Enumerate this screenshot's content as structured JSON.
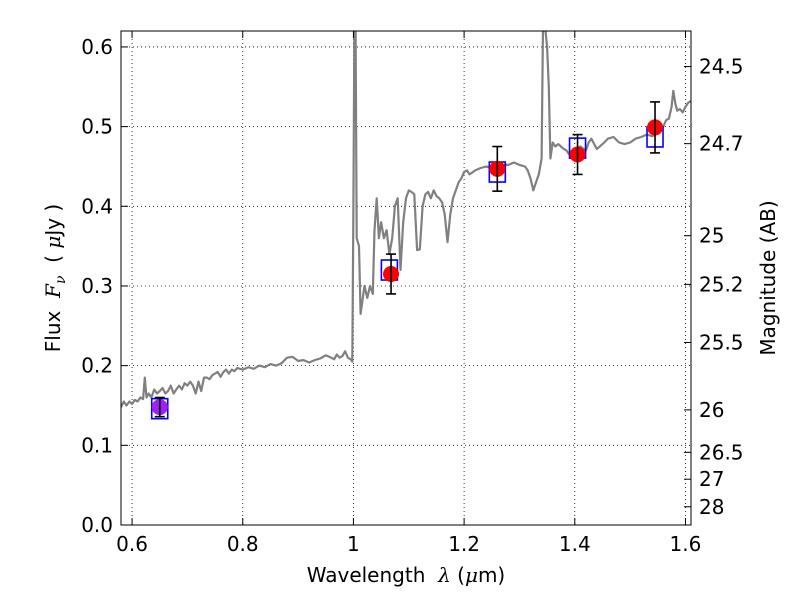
{
  "chart_data": {
    "type": "line",
    "xlabel": {
      "prefix": "Wavelength  ",
      "symbol": "λ",
      "unit_open": " (",
      "unit_mu": "μ",
      "unit_close": "m)"
    },
    "ylabel": {
      "prefix": "Flux  ",
      "symbol": "F",
      "subscript": "ν",
      "unit_open": "  ( ",
      "unit_mu": "μ",
      "unit_close": "Jy )"
    },
    "y2label": "Magnitude (AB)",
    "xlim": [
      0.58,
      1.61
    ],
    "ylim": [
      0.0,
      0.62
    ],
    "x_ticks": [
      {
        "value": 0.6,
        "label": "0.6"
      },
      {
        "value": 0.8,
        "label": "0.8"
      },
      {
        "value": 1.0,
        "label": "1"
      },
      {
        "value": 1.2,
        "label": "1.2"
      },
      {
        "value": 1.4,
        "label": "1.4"
      },
      {
        "value": 1.6,
        "label": "1.6"
      }
    ],
    "y_ticks": [
      {
        "value": 0.0,
        "label": "0.0"
      },
      {
        "value": 0.1,
        "label": "0.1"
      },
      {
        "value": 0.2,
        "label": "0.2"
      },
      {
        "value": 0.3,
        "label": "0.3"
      },
      {
        "value": 0.4,
        "label": "0.4"
      },
      {
        "value": 0.5,
        "label": "0.5"
      },
      {
        "value": 0.6,
        "label": "0.6"
      }
    ],
    "y2_ticks": [
      {
        "label": "24.5",
        "flux": 0.5754
      },
      {
        "label": "24.7",
        "flux": 0.4786
      },
      {
        "label": "25",
        "flux": 0.3631
      },
      {
        "label": "25.2",
        "flux": 0.302
      },
      {
        "label": "25.5",
        "flux": 0.2291
      },
      {
        "label": "26",
        "flux": 0.1445
      },
      {
        "label": "26.5",
        "flux": 0.0912
      },
      {
        "label": "27",
        "flux": 0.0575
      },
      {
        "label": "28",
        "flux": 0.0229
      }
    ],
    "grid": true,
    "series": [
      {
        "kind": "line",
        "color": "#808080",
        "points": [
          [
            0.58,
            0.148
          ],
          [
            0.585,
            0.155
          ],
          [
            0.59,
            0.15
          ],
          [
            0.595,
            0.155
          ],
          [
            0.6,
            0.152
          ],
          [
            0.605,
            0.157
          ],
          [
            0.61,
            0.155
          ],
          [
            0.615,
            0.16
          ],
          [
            0.62,
            0.158
          ],
          [
            0.623,
            0.185
          ],
          [
            0.626,
            0.16
          ],
          [
            0.63,
            0.165
          ],
          [
            0.635,
            0.16
          ],
          [
            0.64,
            0.17
          ],
          [
            0.645,
            0.165
          ],
          [
            0.65,
            0.168
          ],
          [
            0.655,
            0.172
          ],
          [
            0.66,
            0.165
          ],
          [
            0.665,
            0.168
          ],
          [
            0.67,
            0.175
          ],
          [
            0.675,
            0.165
          ],
          [
            0.68,
            0.17
          ],
          [
            0.685,
            0.175
          ],
          [
            0.69,
            0.17
          ],
          [
            0.695,
            0.178
          ],
          [
            0.7,
            0.175
          ],
          [
            0.705,
            0.18
          ],
          [
            0.71,
            0.175
          ],
          [
            0.715,
            0.165
          ],
          [
            0.72,
            0.18
          ],
          [
            0.725,
            0.168
          ],
          [
            0.73,
            0.185
          ],
          [
            0.735,
            0.185
          ],
          [
            0.74,
            0.183
          ],
          [
            0.745,
            0.188
          ],
          [
            0.75,
            0.19
          ],
          [
            0.755,
            0.192
          ],
          [
            0.76,
            0.186
          ],
          [
            0.765,
            0.192
          ],
          [
            0.77,
            0.195
          ],
          [
            0.775,
            0.19
          ],
          [
            0.78,
            0.195
          ],
          [
            0.785,
            0.193
          ],
          [
            0.79,
            0.197
          ],
          [
            0.8,
            0.195
          ],
          [
            0.81,
            0.198
          ],
          [
            0.82,
            0.196
          ],
          [
            0.83,
            0.2
          ],
          [
            0.84,
            0.198
          ],
          [
            0.85,
            0.202
          ],
          [
            0.86,
            0.2
          ],
          [
            0.87,
            0.203
          ],
          [
            0.88,
            0.21
          ],
          [
            0.89,
            0.211
          ],
          [
            0.9,
            0.206
          ],
          [
            0.91,
            0.207
          ],
          [
            0.92,
            0.204
          ],
          [
            0.93,
            0.207
          ],
          [
            0.94,
            0.209
          ],
          [
            0.95,
            0.213
          ],
          [
            0.96,
            0.21
          ],
          [
            0.965,
            0.208
          ],
          [
            0.97,
            0.214
          ],
          [
            0.975,
            0.21
          ],
          [
            0.98,
            0.212
          ],
          [
            0.985,
            0.218
          ],
          [
            0.99,
            0.21
          ],
          [
            0.995,
            0.208
          ],
          [
            0.998,
            0.205
          ],
          [
            1.0,
            0.4
          ],
          [
            1.002,
            0.65
          ],
          [
            1.004,
            0.62
          ],
          [
            1.006,
            0.36
          ],
          [
            1.01,
            0.35
          ],
          [
            1.013,
            0.265
          ],
          [
            1.017,
            0.285
          ],
          [
            1.02,
            0.3
          ],
          [
            1.025,
            0.285
          ],
          [
            1.03,
            0.3
          ],
          [
            1.035,
            0.29
          ],
          [
            1.038,
            0.37
          ],
          [
            1.042,
            0.41
          ],
          [
            1.046,
            0.36
          ],
          [
            1.05,
            0.38
          ],
          [
            1.055,
            0.36
          ],
          [
            1.06,
            0.37
          ],
          [
            1.065,
            0.34
          ],
          [
            1.07,
            0.36
          ],
          [
            1.075,
            0.4
          ],
          [
            1.08,
            0.41
          ],
          [
            1.085,
            0.32
          ],
          [
            1.09,
            0.38
          ],
          [
            1.095,
            0.41
          ],
          [
            1.1,
            0.42
          ],
          [
            1.105,
            0.418
          ],
          [
            1.11,
            0.415
          ],
          [
            1.115,
            0.345
          ],
          [
            1.12,
            0.346
          ],
          [
            1.125,
            0.4
          ],
          [
            1.13,
            0.415
          ],
          [
            1.135,
            0.418
          ],
          [
            1.14,
            0.41
          ],
          [
            1.145,
            0.42
          ],
          [
            1.15,
            0.413
          ],
          [
            1.155,
            0.41
          ],
          [
            1.16,
            0.405
          ],
          [
            1.165,
            0.39
          ],
          [
            1.17,
            0.355
          ],
          [
            1.175,
            0.39
          ],
          [
            1.18,
            0.41
          ],
          [
            1.185,
            0.42
          ],
          [
            1.19,
            0.43
          ],
          [
            1.195,
            0.435
          ],
          [
            1.2,
            0.443
          ],
          [
            1.205,
            0.445
          ],
          [
            1.21,
            0.44
          ],
          [
            1.22,
            0.445
          ],
          [
            1.23,
            0.448
          ],
          [
            1.24,
            0.45
          ],
          [
            1.25,
            0.448
          ],
          [
            1.26,
            0.45
          ],
          [
            1.27,
            0.452
          ],
          [
            1.28,
            0.452
          ],
          [
            1.29,
            0.455
          ],
          [
            1.3,
            0.452
          ],
          [
            1.31,
            0.45
          ],
          [
            1.315,
            0.445
          ],
          [
            1.32,
            0.435
          ],
          [
            1.325,
            0.42
          ],
          [
            1.33,
            0.43
          ],
          [
            1.335,
            0.44
          ],
          [
            1.34,
            0.46
          ],
          [
            1.343,
            0.65
          ],
          [
            1.347,
            0.62
          ],
          [
            1.35,
            0.6
          ],
          [
            1.353,
            0.55
          ],
          [
            1.356,
            0.46
          ],
          [
            1.36,
            0.48
          ],
          [
            1.365,
            0.475
          ],
          [
            1.37,
            0.478
          ],
          [
            1.375,
            0.475
          ],
          [
            1.38,
            0.472
          ],
          [
            1.385,
            0.47
          ],
          [
            1.39,
            0.465
          ],
          [
            1.4,
            0.472
          ],
          [
            1.41,
            0.475
          ],
          [
            1.42,
            0.47
          ],
          [
            1.425,
            0.48
          ],
          [
            1.43,
            0.485
          ],
          [
            1.435,
            0.478
          ],
          [
            1.44,
            0.472
          ],
          [
            1.45,
            0.478
          ],
          [
            1.46,
            0.485
          ],
          [
            1.47,
            0.487
          ],
          [
            1.48,
            0.48
          ],
          [
            1.49,
            0.478
          ],
          [
            1.5,
            0.48
          ],
          [
            1.51,
            0.485
          ],
          [
            1.52,
            0.487
          ],
          [
            1.53,
            0.49
          ],
          [
            1.54,
            0.488
          ],
          [
            1.55,
            0.492
          ],
          [
            1.56,
            0.5
          ],
          [
            1.565,
            0.508
          ],
          [
            1.57,
            0.51
          ],
          [
            1.575,
            0.525
          ],
          [
            1.578,
            0.545
          ],
          [
            1.582,
            0.528
          ],
          [
            1.585,
            0.52
          ],
          [
            1.59,
            0.522
          ],
          [
            1.595,
            0.518
          ],
          [
            1.6,
            0.525
          ],
          [
            1.605,
            0.53
          ],
          [
            1.61,
            0.532
          ]
        ]
      },
      {
        "kind": "model-photometry",
        "marker": "square",
        "color": "#0000ff",
        "x": [
          0.65,
          1.065,
          1.26,
          1.405,
          1.545
        ],
        "y": [
          0.146,
          0.32,
          0.443,
          0.473,
          0.487
        ]
      },
      {
        "kind": "observed-photometry",
        "marker": "circle",
        "color": "#ff0000",
        "x": [
          0.65,
          1.068,
          1.26,
          1.405,
          1.545
        ],
        "y": [
          0.148,
          0.315,
          0.447,
          0.465,
          0.499
        ],
        "yerr": [
          0.012,
          0.025,
          0.028,
          0.025,
          0.032
        ],
        "colors": [
          "#a020f0",
          "#ff0000",
          "#ff0000",
          "#ff0000",
          "#ff0000"
        ]
      }
    ]
  }
}
